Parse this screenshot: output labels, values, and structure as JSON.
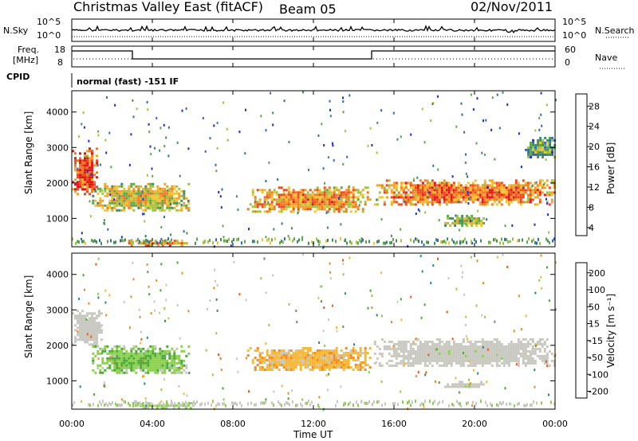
{
  "header": {
    "title": "Christmas Valley East (fitACF)",
    "beam": "Beam 05",
    "date": "02/Nov/2011"
  },
  "top_panels": {
    "nsky_label": "N.Sky",
    "nsearch_label": "N.Search",
    "freq_label_1": "Freq.",
    "freq_label_2": "[MHz]",
    "nave_label": "Nave",
    "cpid_label": "CPID",
    "noise_left_ticks": [
      "10^5",
      "10^0"
    ],
    "noise_right_ticks": [
      "10^5",
      "10^0"
    ],
    "freq_ticks": [
      "18",
      "8"
    ],
    "nave_ticks": [
      "60",
      "0"
    ],
    "cpid_text": "normal (fast) -151 IF"
  },
  "power_panel": {
    "colorbar_label": "Power [dB]",
    "colorbar_ticks": [
      "28",
      "24",
      "20",
      "16",
      "12",
      "8",
      "4"
    ]
  },
  "velocity_panel": {
    "colorbar_label": "Velocity [m s⁻¹]",
    "colorbar_ticks": [
      "200",
      "100",
      "50",
      "15",
      "-15",
      "-50",
      "-100",
      "-200"
    ]
  },
  "axes": {
    "ylabel": "Slant Range [km]",
    "yticks": [
      "4000",
      "3000",
      "2000",
      "1000"
    ],
    "xlabel": "Time UT",
    "xticks": [
      "00:00",
      "04:00",
      "08:00",
      "12:00",
      "16:00",
      "20:00",
      "00:00"
    ]
  },
  "chart_data": [
    {
      "type": "heatmap",
      "title": "Power",
      "xlabel": "Time UT",
      "ylabel": "Slant Range [km]",
      "xlim": [
        0,
        24
      ],
      "ylim": [
        200,
        4600
      ],
      "colorbar": {
        "label": "Power [dB]",
        "range": [
          0,
          30
        ],
        "ticks": [
          28,
          24,
          20,
          16,
          12,
          8,
          4
        ]
      },
      "regions": [
        {
          "t_start": 0.0,
          "t_end": 1.2,
          "r_start": 1700,
          "r_end": 3000,
          "value": 24
        },
        {
          "t_start": 1.0,
          "t_end": 5.8,
          "r_start": 1200,
          "r_end": 2000,
          "value": 14
        },
        {
          "t_start": 2.8,
          "t_end": 5.8,
          "r_start": 250,
          "r_end": 400,
          "value": 20
        },
        {
          "t_start": 8.7,
          "t_end": 14.8,
          "r_start": 1200,
          "r_end": 1900,
          "value": 18
        },
        {
          "t_start": 15.0,
          "t_end": 24.0,
          "r_start": 1400,
          "r_end": 2100,
          "value": 20
        },
        {
          "t_start": 18.5,
          "t_end": 20.5,
          "r_start": 800,
          "r_end": 1100,
          "value": 12
        },
        {
          "t_start": 22.5,
          "t_end": 24.0,
          "r_start": 2700,
          "r_end": 3300,
          "value": 8
        }
      ]
    },
    {
      "type": "heatmap",
      "title": "Velocity",
      "xlabel": "Time UT",
      "ylabel": "Slant Range [km]",
      "xlim": [
        0,
        24
      ],
      "ylim": [
        200,
        4600
      ],
      "colorbar": {
        "label": "Velocity [m s⁻¹]",
        "range": [
          -200,
          200
        ],
        "ticks": [
          200,
          100,
          50,
          15,
          -15,
          -50,
          -100,
          -200
        ]
      },
      "regions": [
        {
          "t_start": 0.0,
          "t_end": 1.5,
          "r_start": 2000,
          "r_end": 3000,
          "value": 0
        },
        {
          "t_start": 1.0,
          "t_end": 5.8,
          "r_start": 1200,
          "r_end": 2000,
          "value": 60
        },
        {
          "t_start": 3.0,
          "t_end": 6.0,
          "r_start": 250,
          "r_end": 400,
          "value": 40
        },
        {
          "t_start": 8.7,
          "t_end": 14.8,
          "r_start": 1300,
          "r_end": 1950,
          "value": -70
        },
        {
          "t_start": 15.0,
          "t_end": 24.0,
          "r_start": 1400,
          "r_end": 2200,
          "value": 0
        },
        {
          "t_start": 18.5,
          "t_end": 20.5,
          "r_start": 800,
          "r_end": 1000,
          "value": 0
        }
      ]
    }
  ],
  "colors": {
    "power_scale": [
      "#1a2fd6",
      "#2e6db5",
      "#3f8f5e",
      "#5aa84a",
      "#9cc53d",
      "#f2c430",
      "#f4a128",
      "#f27a22",
      "#ef4a1f",
      "#e5141b"
    ],
    "velocity_scale": [
      "#e5141b",
      "#f05a1f",
      "#f38c25",
      "#f7b838",
      "#c8c8c0",
      "#c8c8c0",
      "#8bd04a",
      "#49a83a",
      "#2f8a7a",
      "#1f4fbf"
    ]
  }
}
